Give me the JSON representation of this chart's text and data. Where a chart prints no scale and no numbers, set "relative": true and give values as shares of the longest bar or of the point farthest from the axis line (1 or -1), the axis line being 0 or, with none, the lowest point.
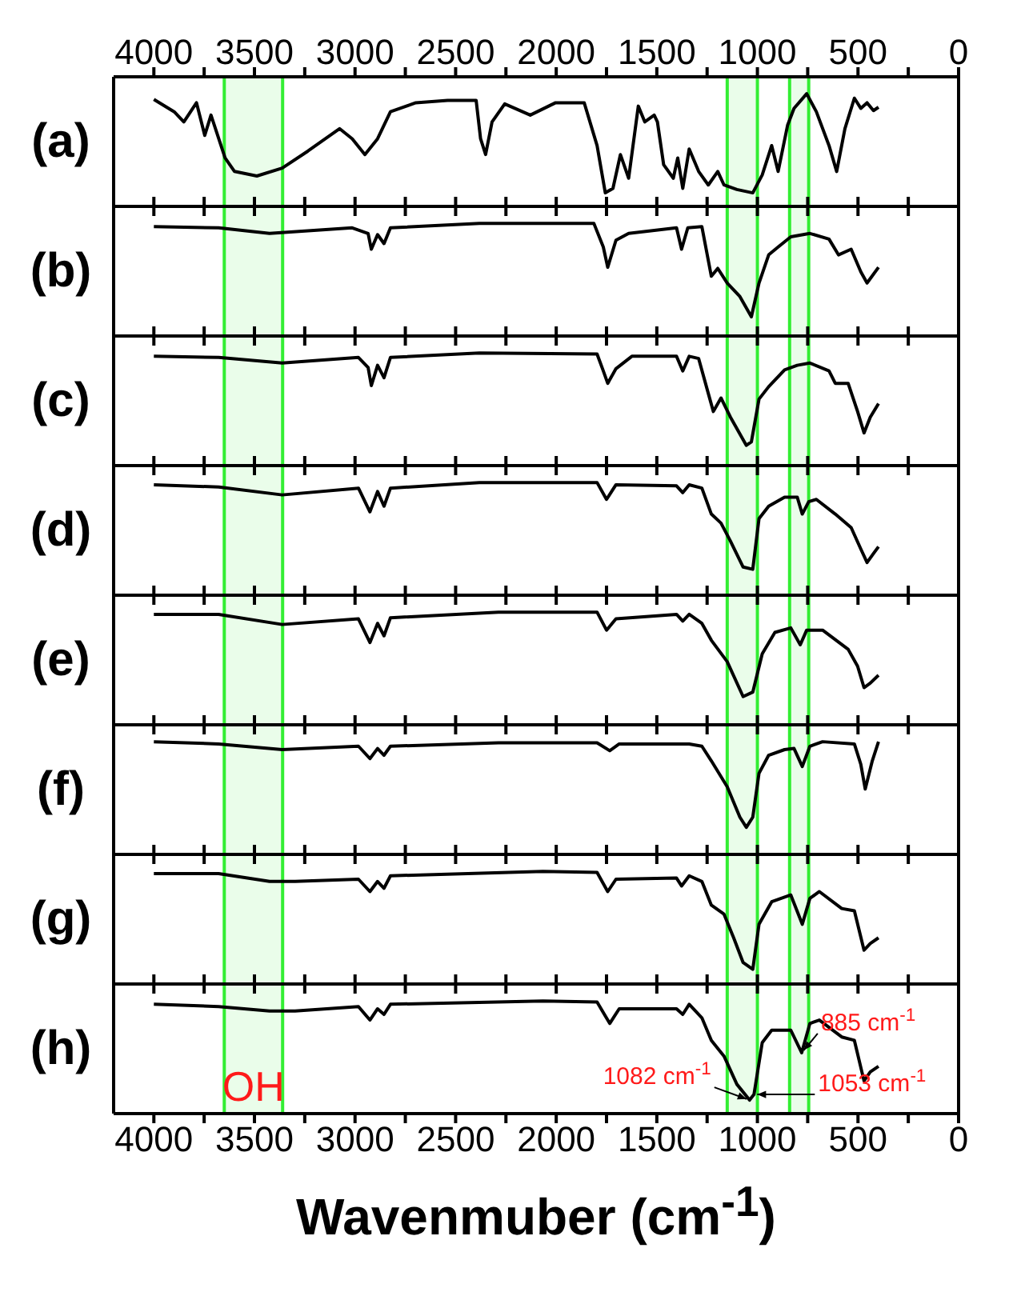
{
  "chart_data": [
    {
      "type": "line",
      "ylabel": "(a)",
      "relative": true,
      "xlim": [
        4200,
        0
      ],
      "x2lim": [
        4200,
        0
      ],
      "x2ticks": [
        4000,
        {
          "value": 3750,
          "label": null
        },
        3500,
        {
          "value": 3250,
          "label": null
        },
        3000,
        {
          "value": 2750,
          "label": null
        },
        2500,
        {
          "value": 2250,
          "label": null
        },
        2000,
        {
          "value": 1750,
          "label": null
        },
        1500,
        {
          "value": 1250,
          "label": null
        },
        1000,
        {
          "value": 750,
          "label": null
        },
        500,
        {
          "value": 250,
          "label": null
        },
        0
      ],
      "tick_labels": "x2",
      "x": [
        4000,
        3899,
        3851,
        3788,
        3747,
        3716,
        3646,
        3599,
        3488,
        3362,
        3235,
        3077,
        3014,
        2951,
        2888,
        2824,
        2698,
        2540,
        2398,
        2376,
        2351,
        2319,
        2256,
        2129,
        2003,
        1861,
        1797,
        1756,
        1718,
        1681,
        1640,
        1592,
        1560,
        1513,
        1497,
        1466,
        1418,
        1396,
        1371,
        1339,
        1292,
        1244,
        1197,
        1166,
        1102,
        1023,
        976,
        929,
        897,
        850,
        818,
        755,
        707,
        644,
        606,
        565,
        518,
        486,
        455,
        423,
        398
      ],
      "series": [
        {
          "color": "#000000",
          "values": [
            0.95,
            0.84,
            0.75,
            0.92,
            0.63,
            0.81,
            0.43,
            0.31,
            0.27,
            0.34,
            0.49,
            0.69,
            0.6,
            0.46,
            0.6,
            0.84,
            0.92,
            0.94,
            0.94,
            0.6,
            0.46,
            0.75,
            0.91,
            0.81,
            0.92,
            0.92,
            0.54,
            0.12,
            0.16,
            0.46,
            0.25,
            0.89,
            0.75,
            0.81,
            0.75,
            0.37,
            0.25,
            0.43,
            0.16,
            0.51,
            0.31,
            0.19,
            0.31,
            0.19,
            0.15,
            0.12,
            0.28,
            0.54,
            0.31,
            0.72,
            0.87,
            1,
            0.84,
            0.54,
            0.31,
            0.69,
            0.96,
            0.87,
            0.92,
            0.85,
            0.88
          ]
        }
      ],
      "bands": [
        {
          "axis": "x",
          "from": 3650,
          "to": 3360,
          "color": "#33ee33"
        },
        {
          "axis": "x",
          "from": 1150,
          "to": 1000,
          "color": "#33ee33"
        },
        {
          "axis": "x",
          "from": 840,
          "to": 745,
          "color": "#33ee33"
        }
      ]
    },
    {
      "type": "line",
      "ylabel": "(b)",
      "relative": true,
      "xlim": [
        4200,
        0
      ],
      "xticks": [
        4000,
        3750,
        3500,
        3250,
        3000,
        2750,
        2500,
        2250,
        2000,
        1750,
        1500,
        1250,
        1000,
        750,
        500,
        250,
        0
      ],
      "tick_labels": false,
      "x": [
        4000,
        3678,
        3425,
        3014,
        2935,
        2919,
        2888,
        2856,
        2824,
        2382,
        1813,
        1766,
        1744,
        1703,
        1640,
        1402,
        1377,
        1346,
        1276,
        1229,
        1197,
        1150,
        1087,
        1030,
        992,
        944,
        897,
        834,
        739,
        644,
        597,
        534,
        486,
        455,
        398
      ],
      "series": [
        {
          "color": "#000000",
          "values": [
            0.97,
            0.96,
            0.91,
            0.96,
            0.91,
            0.77,
            0.9,
            0.82,
            0.96,
            1,
            1,
            0.79,
            0.61,
            0.85,
            0.91,
            0.96,
            0.77,
            0.96,
            0.97,
            0.53,
            0.6,
            0.47,
            0.35,
            0.17,
            0.47,
            0.72,
            0.79,
            0.88,
            0.91,
            0.86,
            0.72,
            0.77,
            0.57,
            0.47,
            0.61
          ]
        }
      ],
      "bands": [
        {
          "axis": "x",
          "from": 3650,
          "to": 3360,
          "color": "#33ee33"
        },
        {
          "axis": "x",
          "from": 1150,
          "to": 1000,
          "color": "#33ee33"
        },
        {
          "axis": "x",
          "from": 840,
          "to": 745,
          "color": "#33ee33"
        }
      ]
    },
    {
      "type": "line",
      "ylabel": "(c)",
      "relative": true,
      "xlim": [
        4200,
        0
      ],
      "xticks": [
        4000,
        3750,
        3500,
        3250,
        3000,
        2750,
        2500,
        2250,
        2000,
        1750,
        1500,
        1250,
        1000,
        750,
        500,
        250,
        0
      ],
      "tick_labels": false,
      "x": [
        4000,
        3678,
        3362,
        2983,
        2935,
        2919,
        2888,
        2856,
        2824,
        2382,
        1797,
        1766,
        1744,
        1703,
        1624,
        1402,
        1371,
        1339,
        1292,
        1244,
        1219,
        1181,
        1134,
        1055,
        1030,
        992,
        944,
        865,
        802,
        739,
        644,
        613,
        549,
        502,
        470,
        439,
        398
      ],
      "series": [
        {
          "color": "#000000",
          "values": [
            0.97,
            0.96,
            0.91,
            0.96,
            0.87,
            0.71,
            0.89,
            0.78,
            0.96,
            1,
            0.99,
            0.84,
            0.73,
            0.86,
            0.97,
            0.97,
            0.84,
            0.97,
            0.95,
            0.64,
            0.48,
            0.6,
            0.43,
            0.18,
            0.21,
            0.59,
            0.7,
            0.85,
            0.89,
            0.91,
            0.84,
            0.73,
            0.73,
            0.48,
            0.29,
            0.43,
            0.55
          ]
        }
      ],
      "bands": [
        {
          "axis": "x",
          "from": 3650,
          "to": 3360,
          "color": "#33ee33"
        },
        {
          "axis": "x",
          "from": 1150,
          "to": 1000,
          "color": "#33ee33"
        },
        {
          "axis": "x",
          "from": 840,
          "to": 745,
          "color": "#33ee33"
        }
      ]
    },
    {
      "type": "line",
      "ylabel": "(d)",
      "relative": true,
      "xlim": [
        4200,
        0
      ],
      "xticks": [
        4000,
        3750,
        3500,
        3250,
        3000,
        2750,
        2500,
        2250,
        2000,
        1750,
        1500,
        1250,
        1000,
        750,
        500,
        250,
        0
      ],
      "tick_labels": false,
      "x": [
        4000,
        3678,
        3362,
        2983,
        2926,
        2888,
        2856,
        2824,
        2382,
        1797,
        1750,
        1703,
        1402,
        1371,
        1339,
        1276,
        1229,
        1181,
        1134,
        1071,
        1023,
        992,
        944,
        865,
        802,
        777,
        745,
        707,
        613,
        534,
        486,
        455,
        423,
        398
      ],
      "series": [
        {
          "color": "#000000",
          "values": [
            0.98,
            0.96,
            0.89,
            0.95,
            0.74,
            0.92,
            0.79,
            0.95,
            1,
            1,
            0.85,
            0.98,
            0.97,
            0.91,
            0.98,
            0.95,
            0.72,
            0.64,
            0.48,
            0.25,
            0.23,
            0.68,
            0.79,
            0.87,
            0.87,
            0.72,
            0.83,
            0.85,
            0.72,
            0.6,
            0.41,
            0.29,
            0.37,
            0.43
          ]
        }
      ],
      "bands": [
        {
          "axis": "x",
          "from": 3650,
          "to": 3360,
          "color": "#33ee33"
        },
        {
          "axis": "x",
          "from": 1150,
          "to": 1000,
          "color": "#33ee33"
        },
        {
          "axis": "x",
          "from": 840,
          "to": 745,
          "color": "#33ee33"
        }
      ]
    },
    {
      "type": "line",
      "ylabel": "(e)",
      "relative": true,
      "xlim": [
        4200,
        0
      ],
      "xticks": [
        4000,
        3750,
        3500,
        3250,
        3000,
        2750,
        2500,
        2250,
        2000,
        1750,
        1500,
        1250,
        1000,
        750,
        500,
        250,
        0
      ],
      "tick_labels": false,
      "x": [
        4000,
        3678,
        3362,
        2983,
        2926,
        2888,
        2856,
        2824,
        2287,
        1797,
        1750,
        1703,
        1402,
        1371,
        1339,
        1276,
        1229,
        1150,
        1071,
        1023,
        976,
        913,
        834,
        787,
        755,
        676,
        549,
        502,
        470,
        439,
        398
      ],
      "series": [
        {
          "color": "#000000",
          "values": [
            0.98,
            0.98,
            0.89,
            0.94,
            0.73,
            0.9,
            0.79,
            0.95,
            1,
            1,
            0.84,
            0.94,
            0.98,
            0.92,
            0.98,
            0.9,
            0.75,
            0.56,
            0.25,
            0.29,
            0.63,
            0.82,
            0.86,
            0.71,
            0.84,
            0.84,
            0.67,
            0.52,
            0.33,
            0.37,
            0.44
          ]
        }
      ],
      "bands": [
        {
          "axis": "x",
          "from": 3650,
          "to": 3360,
          "color": "#33ee33"
        },
        {
          "axis": "x",
          "from": 1150,
          "to": 1000,
          "color": "#33ee33"
        },
        {
          "axis": "x",
          "from": 840,
          "to": 745,
          "color": "#33ee33"
        }
      ]
    },
    {
      "type": "line",
      "ylabel": "(f)",
      "relative": true,
      "xlim": [
        4200,
        0
      ],
      "xticks": [
        4000,
        3750,
        3500,
        3250,
        3000,
        2750,
        2500,
        2250,
        2000,
        1750,
        1500,
        1250,
        1000,
        750,
        500,
        250,
        0
      ],
      "tick_labels": false,
      "x": [
        4000,
        3678,
        3362,
        2983,
        2926,
        2888,
        2856,
        2824,
        2287,
        1797,
        1734,
        1687,
        1402,
        1339,
        1276,
        1229,
        1150,
        1087,
        1055,
        1023,
        992,
        944,
        865,
        818,
        777,
        739,
        676,
        518,
        486,
        464,
        429,
        398
      ],
      "series": [
        {
          "color": "#000000",
          "values": [
            1,
            0.98,
            0.93,
            0.96,
            0.85,
            0.94,
            0.88,
            0.96,
            0.99,
            0.99,
            0.92,
            0.98,
            0.98,
            0.98,
            0.96,
            0.83,
            0.6,
            0.33,
            0.24,
            0.33,
            0.72,
            0.88,
            0.93,
            0.94,
            0.78,
            0.96,
            1,
            0.98,
            0.8,
            0.58,
            0.83,
            1
          ]
        }
      ],
      "bands": [
        {
          "axis": "x",
          "from": 3650,
          "to": 3360,
          "color": "#33ee33"
        },
        {
          "axis": "x",
          "from": 1150,
          "to": 1000,
          "color": "#33ee33"
        },
        {
          "axis": "x",
          "from": 840,
          "to": 745,
          "color": "#33ee33"
        }
      ]
    },
    {
      "type": "line",
      "ylabel": "(g)",
      "relative": true,
      "xlim": [
        4200,
        0
      ],
      "xticks": [
        4000,
        3750,
        3500,
        3250,
        3000,
        2750,
        2500,
        2250,
        2000,
        1750,
        1500,
        1250,
        1000,
        750,
        500,
        250,
        0
      ],
      "tick_labels": false,
      "x": [
        4000,
        3678,
        3425,
        3298,
        2983,
        2926,
        2888,
        2856,
        2824,
        2066,
        1797,
        1744,
        1703,
        1402,
        1377,
        1339,
        1276,
        1229,
        1166,
        1118,
        1071,
        1023,
        992,
        929,
        834,
        777,
        739,
        692,
        581,
        518,
        470,
        439,
        398
      ],
      "series": [
        {
          "color": "#000000",
          "values": [
            0.98,
            0.98,
            0.91,
            0.91,
            0.93,
            0.82,
            0.91,
            0.85,
            0.96,
            1,
            0.99,
            0.82,
            0.93,
            0.94,
            0.87,
            0.96,
            0.91,
            0.7,
            0.62,
            0.41,
            0.19,
            0.13,
            0.53,
            0.73,
            0.79,
            0.53,
            0.76,
            0.82,
            0.67,
            0.65,
            0.3,
            0.36,
            0.41
          ]
        }
      ],
      "bands": [
        {
          "axis": "x",
          "from": 3650,
          "to": 3360,
          "color": "#33ee33"
        },
        {
          "axis": "x",
          "from": 1150,
          "to": 1000,
          "color": "#33ee33"
        },
        {
          "axis": "x",
          "from": 840,
          "to": 745,
          "color": "#33ee33"
        }
      ]
    },
    {
      "type": "line",
      "ylabel": "(h)",
      "xlabel": "Wavenmuber (cm$^{-1}$)",
      "relative": true,
      "xlim": [
        4200,
        0
      ],
      "xticks": [
        4000,
        {
          "value": 3750,
          "label": null
        },
        3500,
        {
          "value": 3250,
          "label": null
        },
        3000,
        {
          "value": 2750,
          "label": null
        },
        2500,
        {
          "value": 2250,
          "label": null
        },
        2000,
        {
          "value": 1750,
          "label": null
        },
        1500,
        {
          "value": 1250,
          "label": null
        },
        1000,
        {
          "value": 750,
          "label": null
        },
        500,
        {
          "value": 250,
          "label": null
        },
        0
      ],
      "tick_labels": "x",
      "x": [
        4000,
        3678,
        3425,
        3298,
        2983,
        2926,
        2888,
        2856,
        2824,
        2066,
        1797,
        1734,
        1687,
        1402,
        1371,
        1339,
        1276,
        1229,
        1166,
        1102,
        1039,
        1017,
        976,
        929,
        834,
        780,
        739,
        692,
        581,
        518,
        470,
        439,
        398
      ],
      "series": [
        {
          "color": "#000000",
          "values": [
            0.97,
            0.95,
            0.91,
            0.91,
            0.95,
            0.83,
            0.93,
            0.88,
            0.97,
            1,
            0.99,
            0.8,
            0.93,
            0.93,
            0.88,
            0.97,
            0.85,
            0.65,
            0.51,
            0.26,
            0.12,
            0.17,
            0.63,
            0.74,
            0.74,
            0.54,
            0.8,
            0.83,
            0.68,
            0.65,
            0.29,
            0.37,
            0.42
          ]
        }
      ],
      "bands": [
        {
          "axis": "x",
          "from": 3650,
          "to": 3360,
          "color": "#33ee33",
          "label": "OH"
        },
        {
          "axis": "x",
          "from": 1150,
          "to": 1000,
          "color": "#33ee33"
        },
        {
          "axis": "x",
          "from": 840,
          "to": 745,
          "color": "#33ee33"
        }
      ],
      "annotations": [
        {
          "text": "1082 cm$^{-1}$",
          "x": 1039,
          "y": 0.12
        },
        {
          "text": "1053 cm$^{-1}$",
          "x": 1017,
          "y": 0.17
        },
        {
          "text": "885 cm$^{-1}$",
          "x": 780,
          "y": 0.54
        }
      ]
    }
  ]
}
